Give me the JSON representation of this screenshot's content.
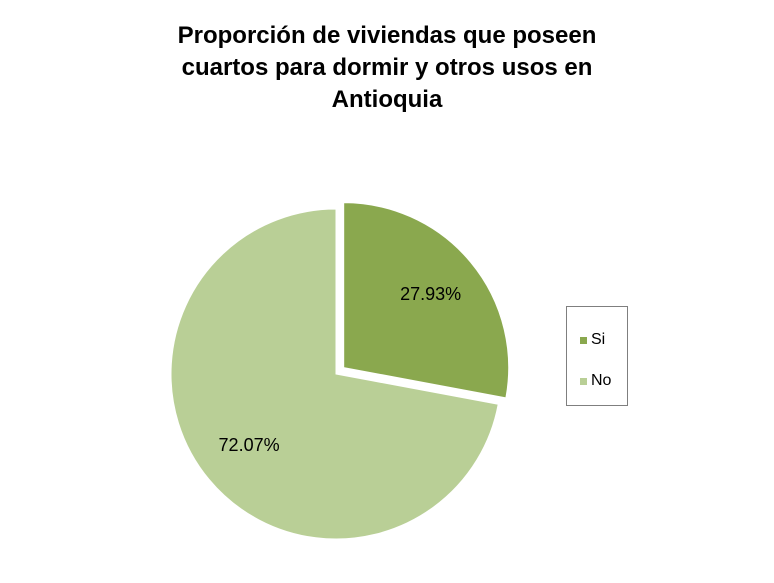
{
  "chart_data": {
    "type": "pie",
    "title_lines": [
      "Proporción de viviendas que poseen",
      "cuartos para dormir y otros usos en",
      "Antioquia"
    ],
    "slices": [
      {
        "name": "Si",
        "value": 27.93,
        "label": "27.93%",
        "color": "#8aa84e",
        "exploded": true
      },
      {
        "name": "No",
        "value": 72.07,
        "label": "72.07%",
        "color": "#b9cf96",
        "exploded": false
      }
    ],
    "legend_position": "right"
  }
}
